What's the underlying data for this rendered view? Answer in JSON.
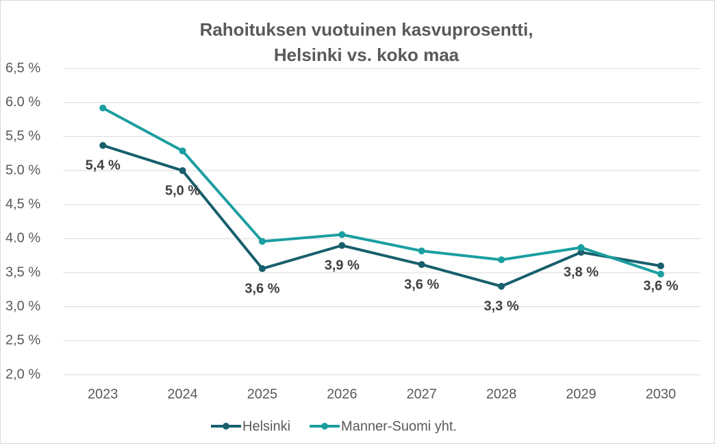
{
  "chart_data": {
    "type": "line",
    "title": [
      "Rahoituksen vuotuinen kasvuprosentti,",
      "Helsinki vs. koko maa"
    ],
    "categories": [
      "2023",
      "2024",
      "2025",
      "2026",
      "2027",
      "2028",
      "2029",
      "2030"
    ],
    "series": [
      {
        "name": "Helsinki",
        "color": "#175f6c",
        "values": [
          5.37,
          5.0,
          3.56,
          3.9,
          3.62,
          3.3,
          3.8,
          3.6
        ],
        "value_labels": [
          "5,4 %",
          "5,0 %",
          "3,6 %",
          "3,9 %",
          "3,6 %",
          "3,3 %",
          "3,8 %",
          "3,6 %"
        ]
      },
      {
        "name": "Manner-Suomi yht.",
        "color": "#1b9ea0",
        "values": [
          5.92,
          5.29,
          3.96,
          4.06,
          3.82,
          3.69,
          3.87,
          3.48
        ]
      }
    ],
    "ylim": [
      2.0,
      6.5
    ],
    "yticks": [
      {
        "value": 2.0,
        "label": "2,0 %"
      },
      {
        "value": 2.5,
        "label": "2,5 %"
      },
      {
        "value": 3.0,
        "label": "3,0 %"
      },
      {
        "value": 3.5,
        "label": "3,5 %"
      },
      {
        "value": 4.0,
        "label": "4.0 %"
      },
      {
        "value": 4.5,
        "label": "4,5 %"
      },
      {
        "value": 5.0,
        "label": "5.0 %"
      },
      {
        "value": 5.5,
        "label": "5,5 %"
      },
      {
        "value": 6.0,
        "label": "6.0 %"
      },
      {
        "value": 6.5,
        "label": "6,5 %"
      }
    ],
    "grid": true,
    "legend": "bottom"
  }
}
